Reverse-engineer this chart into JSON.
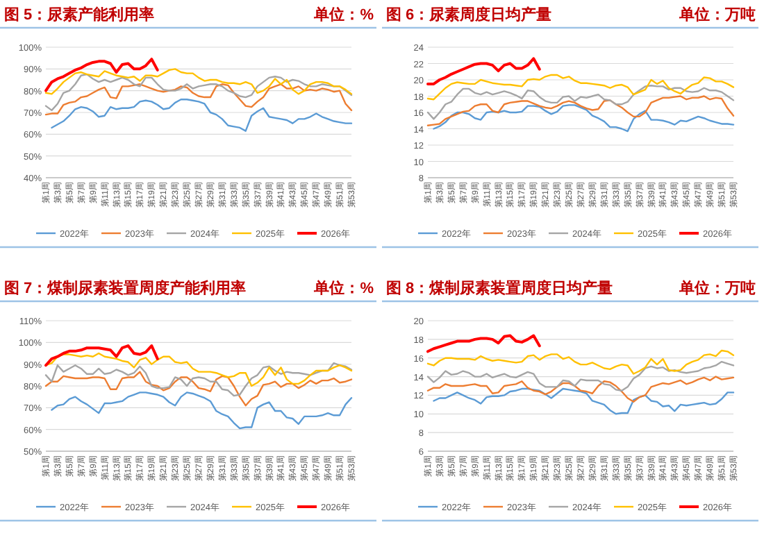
{
  "chart_data": [
    {
      "type": "line",
      "title": "图 5：尿素产能利用率",
      "subtitle": "单位：%",
      "categories": [
        "第1周",
        null,
        "第3周",
        null,
        "第5周",
        null,
        "第7周",
        null,
        "第9周",
        null,
        "第11周",
        null,
        "第13周",
        null,
        "第15周",
        null,
        "第17周",
        null,
        "第19周",
        null,
        "第21周",
        null,
        "第23周",
        null,
        "第25周",
        null,
        "第27周",
        null,
        "第29周",
        null,
        "第31周",
        null,
        "第33周",
        null,
        "第35周",
        null,
        "第37周",
        null,
        "第39周",
        null,
        "第41周",
        null,
        "第43周",
        null,
        "第45周",
        null,
        "第47周",
        null,
        "第49周",
        null,
        "第51周",
        null,
        "第53周"
      ],
      "ylim": [
        40,
        100
      ],
      "yticks": [
        {
          "value": 40,
          "label": "40%"
        },
        {
          "value": 50,
          "label": "50%"
        },
        {
          "value": 60,
          "label": "60%"
        },
        {
          "value": 70,
          "label": "70%"
        },
        {
          "value": 80,
          "label": "80%"
        },
        {
          "value": 90,
          "label": "90%"
        },
        {
          "value": 100,
          "label": "100%"
        }
      ],
      "grid": "y",
      "legend": "bottom",
      "marker": "none",
      "line_style": "solid",
      "series": [
        {
          "name": "2022年",
          "color": "#5b9bd5",
          "values": [
            null,
            63,
            64.5,
            66,
            68.5,
            71.5,
            72.5,
            72,
            70.5,
            68,
            68.5,
            72.5,
            71.5,
            72,
            72,
            72.5,
            75,
            75.5,
            75,
            73.5,
            71.5,
            72,
            74.5,
            76,
            76,
            75.5,
            75,
            74,
            70,
            69,
            67,
            64,
            63.5,
            63,
            61.5,
            68.5,
            70.5,
            72,
            68,
            67.5,
            67,
            66.5,
            65,
            67,
            67,
            68,
            69.5,
            68,
            67,
            66,
            65.5,
            65,
            65
          ]
        },
        {
          "name": "2023年",
          "color": "#ed7d31",
          "values": [
            69,
            69.5,
            69.5,
            73.5,
            74.5,
            75,
            77,
            77.5,
            79,
            80.5,
            81.5,
            77,
            76.5,
            82,
            82,
            82.5,
            83,
            82,
            81,
            80,
            79.5,
            80,
            80.5,
            82,
            81.5,
            79,
            77.5,
            77,
            77,
            82,
            83,
            82.5,
            79,
            76,
            73,
            72.5,
            75,
            77,
            81,
            82,
            83,
            81,
            81,
            82,
            80,
            80.5,
            80,
            81,
            80.5,
            79.5,
            80,
            74,
            71
          ]
        },
        {
          "name": "2024年",
          "color": "#a5a5a5",
          "values": [
            73,
            71,
            74,
            79,
            80,
            83,
            87,
            87.5,
            85.5,
            84,
            85,
            84,
            85,
            86,
            85,
            83,
            82,
            86,
            86,
            83,
            80.5,
            80,
            80,
            81,
            83,
            81,
            82,
            82.5,
            83,
            83,
            82,
            80,
            79,
            77.5,
            77,
            78,
            82,
            84,
            86,
            86.5,
            86,
            84,
            85,
            84.5,
            83,
            82,
            82,
            83,
            82.5,
            82,
            82,
            80,
            78
          ]
        },
        {
          "name": "2025年",
          "color": "#ffc000",
          "values": [
            79,
            78.5,
            81,
            84,
            86,
            88,
            88.5,
            87.5,
            87,
            86.5,
            89,
            88,
            87,
            86.5,
            86,
            86.5,
            84.5,
            87,
            87,
            86.5,
            88,
            89.5,
            90,
            88.5,
            88,
            88,
            86,
            84.5,
            85,
            85,
            84,
            83.5,
            83.5,
            83,
            84,
            83,
            79,
            80,
            82,
            85.5,
            83,
            85,
            80.5,
            78.5,
            80,
            83,
            84,
            84,
            83.5,
            82,
            82,
            80.5,
            78.5
          ]
        },
        {
          "name": "2026年",
          "color": "#ff0000",
          "values": [
            80,
            84,
            85.5,
            86.5,
            88,
            89.5,
            90.5,
            92,
            93,
            93.5,
            93.5,
            92.5,
            88.5,
            92,
            92.5,
            90,
            90,
            91.5,
            94.5,
            89.5,
            null,
            null,
            null,
            null,
            null,
            null,
            null,
            null,
            null,
            null,
            null,
            null,
            null,
            null,
            null,
            null,
            null,
            null,
            null,
            null,
            null,
            null,
            null,
            null,
            null,
            null,
            null,
            null,
            null,
            null,
            null,
            null,
            null
          ]
        }
      ]
    },
    {
      "type": "line",
      "title": "图 6：尿素周度日均产量",
      "subtitle": "单位：万吨",
      "categories": [
        "第1周",
        null,
        "第3周",
        null,
        "第5周",
        null,
        "第7周",
        null,
        "第9周",
        null,
        "第11周",
        null,
        "第13周",
        null,
        "第15周",
        null,
        "第17周",
        null,
        "第19周",
        null,
        "第21周",
        null,
        "第23周",
        null,
        "第25周",
        null,
        "第27周",
        null,
        "第29周",
        null,
        "第31周",
        null,
        "第33周",
        null,
        "第35周",
        null,
        "第37周",
        null,
        "第39周",
        null,
        "第41周",
        null,
        "第43周",
        null,
        "第45周",
        null,
        "第47周",
        null,
        "第49周",
        null,
        "第51周",
        null,
        "第53周"
      ],
      "ylim": [
        8,
        24
      ],
      "yticks": [
        8,
        10,
        12,
        14,
        16,
        18,
        20,
        22,
        24
      ],
      "grid": "y",
      "legend": "bottom",
      "marker": "none",
      "line_style": "solid",
      "series": [
        {
          "name": "2022年",
          "color": "#5b9bd5",
          "values": [
            null,
            14,
            14.3,
            14.8,
            15.6,
            16,
            16,
            15.8,
            15.3,
            15.1,
            16,
            16.1,
            16,
            16.2,
            16,
            16,
            16.1,
            16.8,
            16.8,
            16.7,
            16.2,
            15.8,
            16.1,
            16.8,
            16.9,
            16.9,
            16.6,
            16.3,
            15.6,
            15.3,
            14.9,
            14.2,
            14.2,
            14,
            13.7,
            15.2,
            15.8,
            16.2,
            15.1,
            15.1,
            15,
            14.8,
            14.5,
            15,
            14.9,
            15.2,
            15.5,
            15.3,
            15,
            14.8,
            14.6,
            14.6,
            14.5
          ]
        },
        {
          "name": "2023年",
          "color": "#ed7d31",
          "values": [
            14.4,
            14.5,
            14.6,
            15.2,
            15.5,
            15.8,
            16.1,
            16.2,
            16.8,
            17,
            17,
            16.2,
            16,
            17,
            17.2,
            17.3,
            17.4,
            17.4,
            17.1,
            16.8,
            16.6,
            16.5,
            16.8,
            17.2,
            17.4,
            17.2,
            16.8,
            16.5,
            16.3,
            16.4,
            17.4,
            17.5,
            17,
            16.6,
            16,
            15.5,
            15.5,
            16,
            17.2,
            17.5,
            17.8,
            17.8,
            17.9,
            18,
            17.6,
            17.8,
            17.8,
            18,
            17.6,
            17.8,
            17.7,
            16.5,
            15.6
          ]
        },
        {
          "name": "2024年",
          "color": "#a5a5a5",
          "values": [
            16,
            15.2,
            16,
            17,
            17.3,
            18.2,
            18.9,
            18.9,
            18.4,
            18.2,
            18.5,
            18.2,
            18.4,
            18.6,
            18.4,
            18.1,
            17.7,
            18.7,
            18.6,
            17.9,
            17.4,
            17.2,
            17.2,
            17.9,
            18,
            17.4,
            17.9,
            17.8,
            18,
            18.2,
            17.6,
            17.5,
            17,
            17,
            17.3,
            18.2,
            18.7,
            19.2,
            19.3,
            19.2,
            19.2,
            18.8,
            19,
            19,
            18.6,
            18.5,
            18.6,
            19,
            18.7,
            18.7,
            18.5,
            18,
            17.5
          ]
        },
        {
          "name": "2025年",
          "color": "#ffc000",
          "values": [
            17.7,
            17.6,
            18.3,
            19,
            19.5,
            19.7,
            19.6,
            19.5,
            19.5,
            20,
            19.8,
            19.6,
            19.5,
            19.4,
            19.4,
            19.3,
            19.2,
            20,
            20.1,
            20,
            20.4,
            20.6,
            20.6,
            20.2,
            20.4,
            19.9,
            19.6,
            19.6,
            19.5,
            19.4,
            19.3,
            19,
            19.3,
            19.4,
            19.1,
            18.2,
            18.5,
            18.8,
            20,
            19.5,
            19.9,
            19,
            18.6,
            18.3,
            18.9,
            19.4,
            19.6,
            20.3,
            20.2,
            19.8,
            19.8,
            19.5,
            19.1
          ]
        },
        {
          "name": "2026年",
          "color": "#ff0000",
          "values": [
            19.5,
            19.5,
            20,
            20.3,
            20.7,
            21,
            21.3,
            21.6,
            21.9,
            22,
            22,
            21.8,
            21.1,
            21.8,
            22,
            21.4,
            21.4,
            21.8,
            22.6,
            21.3,
            null,
            null,
            null,
            null,
            null,
            null,
            null,
            null,
            null,
            null,
            null,
            null,
            null,
            null,
            null,
            null,
            null,
            null,
            null,
            null,
            null,
            null,
            null,
            null,
            null,
            null,
            null,
            null,
            null,
            null,
            null,
            null,
            null
          ]
        }
      ]
    },
    {
      "type": "line",
      "title": "图 7：煤制尿素装置周度产能利用率",
      "subtitle": "单位：%",
      "categories": [
        "第1周",
        null,
        "第3周",
        null,
        "第5周",
        null,
        "第7周",
        null,
        "第9周",
        null,
        "第11周",
        null,
        "第13周",
        null,
        "第15周",
        null,
        "第17周",
        null,
        "第19周",
        null,
        "第21周",
        null,
        "第23周",
        null,
        "第25周",
        null,
        "第27周",
        null,
        "第29周",
        null,
        "第31周",
        null,
        "第33周",
        null,
        "第35周",
        null,
        "第37周",
        null,
        "第39周",
        null,
        "第41周",
        null,
        "第43周",
        null,
        "第45周",
        null,
        "第47周",
        null,
        "第49周",
        null,
        "第51周",
        null,
        "第53周"
      ],
      "ylim": [
        50,
        110
      ],
      "yticks": [
        {
          "value": 50,
          "label": "50%"
        },
        {
          "value": 60,
          "label": "60%"
        },
        {
          "value": 70,
          "label": "70%"
        },
        {
          "value": 80,
          "label": "80%"
        },
        {
          "value": 90,
          "label": "90%"
        },
        {
          "value": 100,
          "label": "100%"
        },
        {
          "value": 110,
          "label": "110%"
        }
      ],
      "grid": "y",
      "legend": "bottom",
      "marker": "none",
      "line_style": "solid",
      "series": [
        {
          "name": "2022年",
          "color": "#5b9bd5",
          "values": [
            null,
            69,
            71,
            71.5,
            74,
            75,
            73,
            71.5,
            69.5,
            67.5,
            72,
            72,
            72.5,
            73,
            75,
            76,
            77,
            77,
            76.5,
            76,
            75,
            72.5,
            71,
            75,
            77,
            76.5,
            75.5,
            74.5,
            73,
            68.5,
            67,
            66,
            63,
            60.5,
            61,
            61,
            70,
            71.5,
            72.5,
            68.5,
            68.5,
            65.5,
            65,
            62.5,
            66,
            66,
            66,
            66.5,
            67.5,
            66.5,
            66.5,
            71.5,
            74.5
          ]
        },
        {
          "name": "2023年",
          "color": "#ed7d31",
          "values": [
            80,
            82,
            82,
            84.5,
            84,
            83.5,
            83.5,
            83.5,
            84,
            84,
            83.5,
            78.5,
            78.5,
            83.5,
            84,
            84,
            86.5,
            82,
            80.5,
            80,
            78,
            79,
            82,
            84,
            84,
            82,
            79,
            78.5,
            77.5,
            83,
            84.5,
            84,
            80,
            75,
            71,
            74,
            75.5,
            80.5,
            81,
            82,
            79.5,
            81,
            81,
            79,
            80.5,
            82.5,
            81,
            82.5,
            82.5,
            83.5,
            81.5,
            82,
            83
          ]
        },
        {
          "name": "2024年",
          "color": "#a5a5a5",
          "values": [
            85,
            82,
            89.5,
            86.5,
            88,
            89.5,
            88,
            85.5,
            85.5,
            88,
            85.5,
            86,
            87.5,
            86.5,
            85,
            86,
            89,
            86,
            80,
            79,
            79,
            79.5,
            84,
            83,
            80,
            83.5,
            84,
            83.5,
            82,
            82,
            78.5,
            78,
            75.5,
            76,
            80,
            83.5,
            85,
            88.5,
            89,
            87,
            85.5,
            86.5,
            86,
            86,
            85.5,
            85,
            86,
            87,
            87,
            90.5,
            89.5,
            89,
            87.5
          ]
        },
        {
          "name": "2025年",
          "color": "#ffc000",
          "values": [
            89.5,
            90.5,
            93.5,
            94.5,
            94.5,
            94,
            93.5,
            94,
            93.5,
            95,
            93.5,
            93,
            92.5,
            91.5,
            91,
            88.5,
            92,
            93,
            90,
            92,
            93.5,
            93.5,
            91,
            90.5,
            91,
            88,
            86.5,
            86.5,
            86.5,
            86,
            85,
            84,
            84.5,
            86,
            86,
            80,
            81.5,
            84,
            88.5,
            85,
            88.5,
            83,
            81,
            81,
            82.5,
            85,
            87,
            87,
            87,
            88.5,
            89.5,
            88.5,
            87
          ]
        },
        {
          "name": "2026年",
          "color": "#ff0000",
          "values": [
            89.5,
            92.5,
            93.5,
            95,
            96,
            96,
            96.5,
            97.5,
            97.5,
            97.5,
            97,
            96.5,
            93.5,
            97.5,
            98.5,
            95,
            94.5,
            95.5,
            98.5,
            92.5,
            null,
            null,
            null,
            null,
            null,
            null,
            null,
            null,
            null,
            null,
            null,
            null,
            null,
            null,
            null,
            null,
            null,
            null,
            null,
            null,
            null,
            null,
            null,
            null,
            null,
            null,
            null,
            null,
            null,
            null,
            null,
            null,
            null
          ]
        }
      ]
    },
    {
      "type": "line",
      "title": "图 8：煤制尿素装置周度日均产量",
      "subtitle": "单位：万吨",
      "categories": [
        "第1周",
        null,
        "第3周",
        null,
        "第5周",
        null,
        "第7周",
        null,
        "第9周",
        null,
        "第11周",
        null,
        "第13周",
        null,
        "第15周",
        null,
        "第17周",
        null,
        "第19周",
        null,
        "第21周",
        null,
        "第23周",
        null,
        "第25周",
        null,
        "第27周",
        null,
        "第29周",
        null,
        "第31周",
        null,
        "第33周",
        null,
        "第35周",
        null,
        "第37周",
        null,
        "第39周",
        null,
        "第41周",
        null,
        "第43周",
        null,
        "第45周",
        null,
        "第47周",
        null,
        "第49周",
        null,
        "第51周",
        null,
        "第53周"
      ],
      "ylim": [
        6,
        20
      ],
      "yticks": [
        6,
        8,
        10,
        12,
        14,
        16,
        18,
        20
      ],
      "grid": "y",
      "legend": "bottom",
      "marker": "none",
      "line_style": "solid",
      "series": [
        {
          "name": "2022年",
          "color": "#5b9bd5",
          "values": [
            null,
            11.4,
            11.7,
            11.7,
            12,
            12.3,
            12,
            11.7,
            11.5,
            11.1,
            11.8,
            11.9,
            11.9,
            12,
            12.4,
            12.5,
            12.7,
            12.7,
            12.6,
            12.5,
            12.1,
            11.7,
            12.2,
            12.7,
            12.6,
            12.5,
            12.4,
            12.2,
            11.4,
            11.2,
            11,
            10.4,
            10,
            10.1,
            10.1,
            11.5,
            11.8,
            12,
            11.4,
            11.3,
            10.8,
            10.9,
            10.3,
            11,
            10.9,
            11,
            11.1,
            11.2,
            11,
            11.1,
            11.6,
            12.3,
            12.3
          ]
        },
        {
          "name": "2023年",
          "color": "#ed7d31",
          "values": [
            12.5,
            12.8,
            12.8,
            13.2,
            13,
            13,
            13,
            13.1,
            13.2,
            13,
            13,
            12.2,
            12.3,
            13,
            13.1,
            13.2,
            13.5,
            12.8,
            12.5,
            12.4,
            12.1,
            12.4,
            12.9,
            13.3,
            13.3,
            13,
            12.5,
            12.4,
            12.2,
            13,
            13.5,
            13.4,
            13,
            12.4,
            11.7,
            11.3,
            11.8,
            12,
            12.9,
            13.1,
            13.3,
            13.2,
            13.4,
            13.6,
            13.2,
            13.4,
            13.7,
            13.9,
            13.6,
            14,
            13.7,
            13.8,
            13.9
          ]
        },
        {
          "name": "2024年",
          "color": "#a5a5a5",
          "values": [
            14,
            13.4,
            13.9,
            14.6,
            14.2,
            14.3,
            14.6,
            14.4,
            14,
            14,
            14.3,
            13.9,
            14.1,
            14.3,
            14,
            13.9,
            14.2,
            14.5,
            14.3,
            13.3,
            12.9,
            12.9,
            12.9,
            13.6,
            13.5,
            13,
            13.7,
            13.6,
            13.6,
            13.6,
            13.2,
            13.1,
            12.6,
            12.5,
            12.9,
            13.8,
            14.2,
            14.9,
            15.1,
            14.9,
            15,
            14.6,
            14.7,
            14.5,
            14.4,
            14.5,
            14.6,
            14.9,
            15,
            15.2,
            15.6,
            15.4,
            15.2
          ]
        },
        {
          "name": "2025年",
          "color": "#ffc000",
          "values": [
            15.4,
            15.2,
            15.7,
            16,
            16,
            15.9,
            15.9,
            15.9,
            15.8,
            16.2,
            15.9,
            15.7,
            15.8,
            15.7,
            15.6,
            15.5,
            15.6,
            16.2,
            16.3,
            15.8,
            16.2,
            16.4,
            16.4,
            15.9,
            16.1,
            15.6,
            15.3,
            15.3,
            15.5,
            15.2,
            14.9,
            14.8,
            15.1,
            15.3,
            15.2,
            14.3,
            14.6,
            15,
            15.9,
            15.3,
            15.9,
            14.7,
            14.6,
            14.7,
            15.3,
            15.6,
            15.8,
            16.3,
            16.4,
            16.2,
            16.8,
            16.7,
            16.3
          ]
        },
        {
          "name": "2026年",
          "color": "#ff0000",
          "values": [
            16.7,
            17,
            17.2,
            17.4,
            17.6,
            17.8,
            17.8,
            17.8,
            18,
            18.1,
            18.1,
            18,
            17.6,
            18.3,
            18.4,
            17.8,
            17.7,
            18,
            18.4,
            17.3,
            null,
            null,
            null,
            null,
            null,
            null,
            null,
            null,
            null,
            null,
            null,
            null,
            null,
            null,
            null,
            null,
            null,
            null,
            null,
            null,
            null,
            null,
            null,
            null,
            null,
            null,
            null,
            null,
            null,
            null,
            null,
            null,
            null
          ]
        }
      ]
    }
  ]
}
